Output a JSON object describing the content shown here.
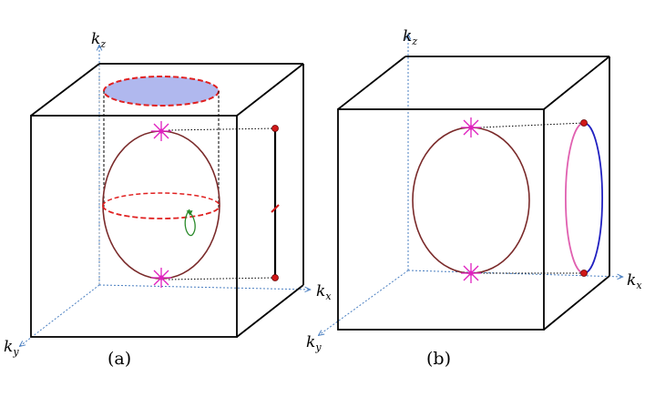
{
  "panels": [
    {
      "label": "(a)",
      "axes": {
        "x": "k",
        "x_sub": "x",
        "y": "k",
        "y_sub": "y",
        "z": "k",
        "z_sub": "z"
      }
    },
    {
      "label": "(b)",
      "axes": {
        "x": "k",
        "x_sub": "x",
        "y": "k",
        "y_sub": "y",
        "z": "k",
        "z_sub": "z"
      }
    }
  ],
  "colors": {
    "cube_edge": "#000000",
    "axis": "#4a7fc1",
    "sphere": "#7a2a2a",
    "weyl_point": "#e020c0",
    "disk_fill": "#b0b8ee",
    "dashed_circle": "#e02020",
    "rotation_arrow": "#2a8a2a",
    "projection_marker": "#d01818",
    "ring_pink": "#e060b0",
    "ring_blue": "#2020c0"
  }
}
